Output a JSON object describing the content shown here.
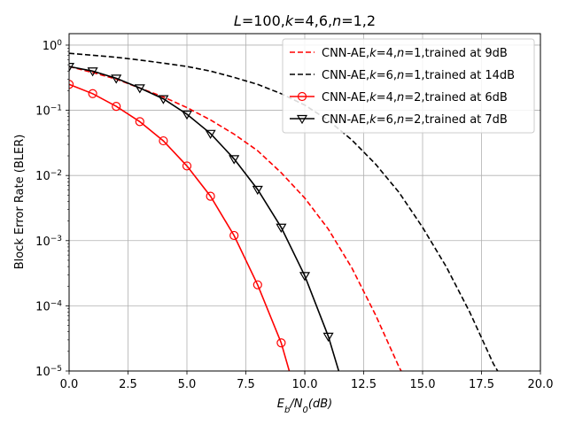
{
  "chart_data": {
    "type": "line",
    "title_parts": [
      {
        "text": "L",
        "italic": true
      },
      {
        "text": "=100,",
        "italic": false
      },
      {
        "text": "k",
        "italic": true
      },
      {
        "text": "=4,6,",
        "italic": false
      },
      {
        "text": "n",
        "italic": true
      },
      {
        "text": "=1,2",
        "italic": false
      }
    ],
    "xlabel_parts": [
      {
        "text": "E",
        "italic": true
      },
      {
        "text": "b",
        "italic": true,
        "sub": true
      },
      {
        "text": "/",
        "italic": true
      },
      {
        "text": "N",
        "italic": true
      },
      {
        "text": "0",
        "italic": true,
        "sub": true
      },
      {
        "text": "(dB)",
        "italic": true
      }
    ],
    "ylabel": "Block Error Rate (BLER)",
    "y_scale": "log",
    "xlim": [
      0,
      20
    ],
    "ylim": [
      1e-05,
      1.5
    ],
    "x_ticks": [
      0,
      2.5,
      5,
      7.5,
      10,
      12.5,
      15,
      17.5,
      20
    ],
    "x_tick_labels": [
      "0.0",
      "2.5",
      "5.0",
      "7.5",
      "10.0",
      "12.5",
      "15.0",
      "17.5",
      "20.0"
    ],
    "y_ticks": [
      1e-05,
      0.0001,
      0.001,
      0.01,
      0.1,
      1
    ],
    "y_tick_labels": [
      {
        "base": "10",
        "exp": "−5"
      },
      {
        "base": "10",
        "exp": "−4"
      },
      {
        "base": "10",
        "exp": "−3"
      },
      {
        "base": "10",
        "exp": "−2"
      },
      {
        "base": "10",
        "exp": "−1"
      },
      {
        "base": "10",
        "exp": "0"
      }
    ],
    "grid": true,
    "legend_position": "top-right",
    "series": [
      {
        "name_parts": [
          {
            "text": "CNN-AE,",
            "italic": false
          },
          {
            "text": "k",
            "italic": true
          },
          {
            "text": "=4,",
            "italic": false
          },
          {
            "text": "n",
            "italic": true
          },
          {
            "text": "=1,trained at 9dB",
            "italic": false
          }
        ],
        "color": "#ff0000",
        "dash": "6,3",
        "marker": "none",
        "x": [
          0,
          1,
          2,
          3,
          4,
          5,
          6,
          7,
          8,
          9,
          10,
          11,
          12,
          13,
          14,
          14.2
        ],
        "y": [
          0.47,
          0.38,
          0.3,
          0.22,
          0.16,
          0.11,
          0.071,
          0.043,
          0.024,
          0.011,
          0.0045,
          0.0015,
          0.00038,
          7.3e-05,
          1.15e-05,
          8.5e-06
        ]
      },
      {
        "name_parts": [
          {
            "text": "CNN-AE,",
            "italic": false
          },
          {
            "text": "k",
            "italic": true
          },
          {
            "text": "=6,",
            "italic": false
          },
          {
            "text": "n",
            "italic": true
          },
          {
            "text": "=1,trained at 14dB",
            "italic": false
          }
        ],
        "color": "#000000",
        "dash": "6,3",
        "marker": "none",
        "x": [
          0,
          1,
          2,
          3,
          4,
          5,
          6,
          7,
          8,
          9,
          10,
          11,
          12,
          13,
          14,
          15,
          16,
          17,
          18,
          18.3
        ],
        "y": [
          0.75,
          0.7,
          0.65,
          0.59,
          0.53,
          0.47,
          0.4,
          0.32,
          0.25,
          0.18,
          0.12,
          0.07,
          0.035,
          0.015,
          0.0055,
          0.0016,
          0.0004,
          8e-05,
          1.3e-05,
          8.5e-06
        ]
      },
      {
        "name_parts": [
          {
            "text": "CNN-AE,",
            "italic": false
          },
          {
            "text": "k",
            "italic": true
          },
          {
            "text": "=4,",
            "italic": false
          },
          {
            "text": "n",
            "italic": true
          },
          {
            "text": "=2,trained at 6dB",
            "italic": false
          }
        ],
        "color": "#ff0000",
        "dash": "",
        "marker": "circle",
        "x": [
          0,
          1,
          2,
          3,
          4,
          5,
          6,
          7,
          8,
          9,
          9.4
        ],
        "y": [
          0.25,
          0.18,
          0.115,
          0.067,
          0.034,
          0.014,
          0.0048,
          0.0012,
          0.00021,
          2.7e-05,
          8.5e-06
        ]
      },
      {
        "name_parts": [
          {
            "text": "CNN-AE,",
            "italic": false
          },
          {
            "text": "k",
            "italic": true
          },
          {
            "text": "=6,",
            "italic": false
          },
          {
            "text": "n",
            "italic": true
          },
          {
            "text": "=2,trained at 7dB",
            "italic": false
          }
        ],
        "color": "#000000",
        "dash": "",
        "marker": "triangle-down",
        "x": [
          0,
          1,
          2,
          3,
          4,
          5,
          6,
          7,
          8,
          9,
          10,
          11,
          11.5
        ],
        "y": [
          0.47,
          0.4,
          0.31,
          0.22,
          0.15,
          0.087,
          0.044,
          0.018,
          0.0061,
          0.0016,
          0.00029,
          3.4e-05,
          8.5e-06
        ]
      }
    ],
    "markers_shown": {
      "0": [],
      "1": [],
      "2": [
        0,
        1,
        2,
        3,
        4,
        5,
        6,
        7,
        8,
        9
      ],
      "3": [
        0,
        1,
        2,
        3,
        4,
        5,
        6,
        7,
        8,
        9,
        10,
        11
      ]
    }
  }
}
